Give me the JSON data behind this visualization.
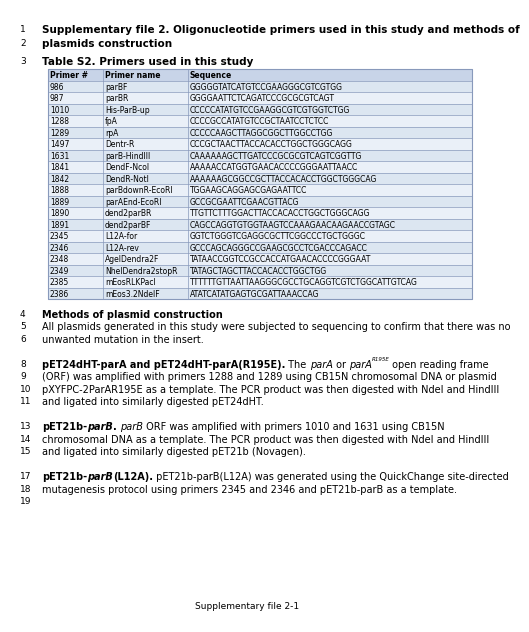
{
  "title_line1": "Supplementary file 2. Oligonucleotide primers used in this study and methods of",
  "title_line2": "plasmids construction",
  "table_title": "Table S2. Primers used in this study",
  "table_headers": [
    "Primer #",
    "Primer name",
    "Sequence"
  ],
  "table_data": [
    [
      "986",
      "parBF",
      "GGGGGTATCATGTCCGAAGGGCGTCGTGG"
    ],
    [
      "987",
      "parBR",
      "GGGGAATTCTCAGATCCCGCGCGTCAGT"
    ],
    [
      "1010",
      "His-ParB-up",
      "CCCCCATATGTCCGAAGGCGTCGTGGTCTGG"
    ],
    [
      "1288",
      "fpA",
      "CCCCGCCATATGTCCGCTAATCCTCTCC"
    ],
    [
      "1289",
      "rpA",
      "CCCCCAAGCTTAGGCGGCTTGGCCTGG"
    ],
    [
      "1497",
      "Dentr-R",
      "CCCGCTAACTTACCACACCTGGCTGGGCAGG"
    ],
    [
      "1631",
      "parB-HindIII",
      "CAAAAAAGCTTGATCCCGCGCGTCAGTCGGTTG"
    ],
    [
      "1841",
      "DendF-NcoI",
      "AAAAACCATGGTGAACACCCCGGGAATTAACC"
    ],
    [
      "1842",
      "DendR-NotI",
      "AAAAAAGCGGCCGCTTACCACACCTGGCTGGGCAG"
    ],
    [
      "1888",
      "parBdownR-EcoRI",
      "TGGAAGCAGGAGCGAGAATTCC"
    ],
    [
      "1889",
      "parAEnd-EcoRI",
      "GCCGCGAATTCGAACGTTACG"
    ],
    [
      "1890",
      "dend2parBR",
      "TTGTTCTTTGGACTTACCACACCTGGCTGGGCAGG"
    ],
    [
      "1891",
      "dend2parBF",
      "CAGCCAGGTGTGGTAAGTCCAAAGAACAAGAACCGTAGC"
    ],
    [
      "2345",
      "L12A-for",
      "GGTCTGGGTCGAGGCGCTTCGGCCCTGCTGGGC"
    ],
    [
      "2346",
      "L12A-rev",
      "GCCCAGCAGGGCCGAAGCGCCTCGACCCAGACC"
    ],
    [
      "2348",
      "AgeIDendra2F",
      "TATAACCGGTCCGCCACCATGAACACCCCGGGAAT"
    ],
    [
      "2349",
      "NheIDendra2stopR",
      "TATAGCTAGCTTACCACACCTGGCTGG"
    ],
    [
      "2385",
      "mEosRLKPacI",
      "TTTTTTGTTAATTAAGGGCGCCTGCAGGTCGTCTGGCATTGTCAG"
    ],
    [
      "2386",
      "mEos3.2NdeIF",
      "ATATCATATGAGTGCGATTAAACCAG"
    ]
  ],
  "section4_header": "Methods of plasmid construction",
  "footer": "Supplementary file 2-1",
  "header_color": "#c8d4e8",
  "row_color_odd": "#dce6f1",
  "row_color_even": "#eaf0f8",
  "table_border_color": "#8899bb",
  "font_size_table": 5.5,
  "font_size_text": 7.0,
  "font_size_title": 7.5,
  "background_color": "#ffffff"
}
